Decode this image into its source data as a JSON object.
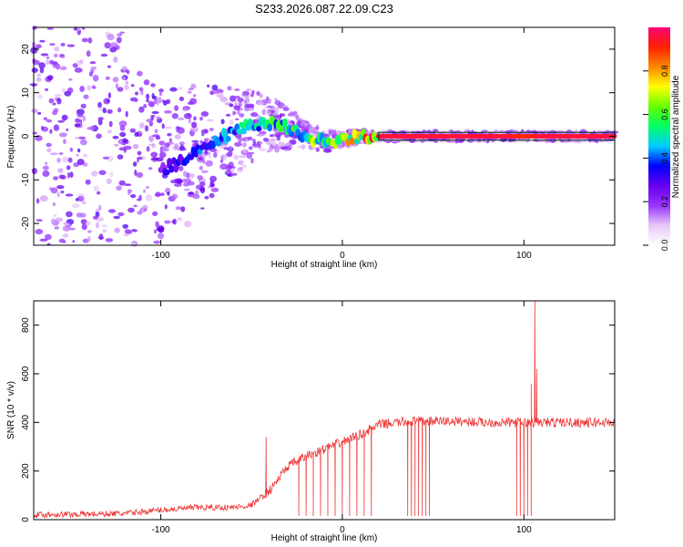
{
  "title": "S233.2026.087.22.09.C23",
  "colorbar": {
    "label": "Normalized spectral amplitude",
    "ticks": [
      "0.0",
      "0.2",
      "0.4",
      "0.6",
      "0.8"
    ],
    "tick_values": [
      0.0,
      0.2,
      0.4,
      0.6,
      0.8
    ],
    "range": [
      0,
      1
    ],
    "colors": [
      "#ffffff",
      "#e8c8f8",
      "#9933ff",
      "#6600ee",
      "#0000ff",
      "#00ccff",
      "#00ff66",
      "#66ff00",
      "#ffff00",
      "#ff8800",
      "#ff2200",
      "#ff0077"
    ]
  },
  "chart_data": [
    {
      "type": "heatmap",
      "title": "S233.2026.087.22.09.C23",
      "xlabel": "Height of straight line (km)",
      "ylabel": "Frequency (Hz)",
      "xlim": [
        -170,
        150
      ],
      "ylim": [
        -25,
        25
      ],
      "xticks": [
        -100,
        0,
        100
      ],
      "xtick_labels": [
        "-100",
        "0",
        "100"
      ],
      "yticks": [
        -20,
        -10,
        0,
        10,
        20
      ],
      "ytick_labels": [
        "-20",
        "-10",
        "0",
        "10",
        "20"
      ],
      "ridge": {
        "x": [
          -100,
          -90,
          -80,
          -70,
          -60,
          -50,
          -40,
          -30,
          -20,
          -10,
          0,
          10,
          20,
          50,
          90,
          100,
          110,
          150
        ],
        "frequency": [
          -8,
          -6,
          -3,
          -1,
          1,
          2.5,
          3,
          2,
          0,
          -1,
          -0.8,
          0,
          0,
          0,
          0,
          0,
          0,
          0
        ],
        "amplitude": [
          0.3,
          0.35,
          0.4,
          0.45,
          0.5,
          0.55,
          0.6,
          0.6,
          0.65,
          0.7,
          0.75,
          0.85,
          0.95,
          0.95,
          0.95,
          0.9,
          0.95,
          0.95
        ]
      },
      "noise_spread_hz": [
        {
          "x": -170,
          "spread": 25
        },
        {
          "x": -120,
          "spread": 25
        },
        {
          "x": -60,
          "spread": 10
        },
        {
          "x": -20,
          "spread": 3
        },
        {
          "x": 20,
          "spread": 1
        },
        {
          "x": 150,
          "spread": 1
        }
      ]
    },
    {
      "type": "line",
      "xlabel": "Height of straight line (km)",
      "ylabel": "SNR (10 * v/v)",
      "xlim": [
        -170,
        150
      ],
      "ylim": [
        0,
        900
      ],
      "xticks": [
        -100,
        0,
        100
      ],
      "xtick_labels": [
        "-100",
        "0",
        "100"
      ],
      "yticks": [
        0,
        200,
        400,
        600,
        800
      ],
      "ytick_labels": [
        "0",
        "200",
        "400",
        "600",
        "800"
      ],
      "series": [
        {
          "name": "SNR",
          "color": "#ee3333",
          "baseline_x": [
            -170,
            -120,
            -100,
            -80,
            -60,
            -50,
            -40,
            -30,
            -20,
            -10,
            0,
            10,
            20,
            30,
            40,
            60,
            80,
            100,
            110,
            150
          ],
          "baseline_snr": [
            20,
            25,
            40,
            50,
            50,
            60,
            120,
            220,
            260,
            290,
            320,
            350,
            390,
            400,
            405,
            405,
            400,
            400,
            400,
            400
          ],
          "spikes": [
            {
              "x": -42,
              "snr": 340
            },
            {
              "x": 104,
              "snr": 560
            },
            {
              "x": 106,
              "snr": 900
            },
            {
              "x": 107,
              "snr": 620
            }
          ],
          "dropouts_x": [
            -24,
            -20,
            -16,
            -12,
            -8,
            -4,
            0,
            4,
            8,
            12,
            16,
            36,
            38,
            40,
            42,
            44,
            46,
            48,
            96,
            98,
            100,
            102,
            104
          ]
        }
      ]
    }
  ]
}
